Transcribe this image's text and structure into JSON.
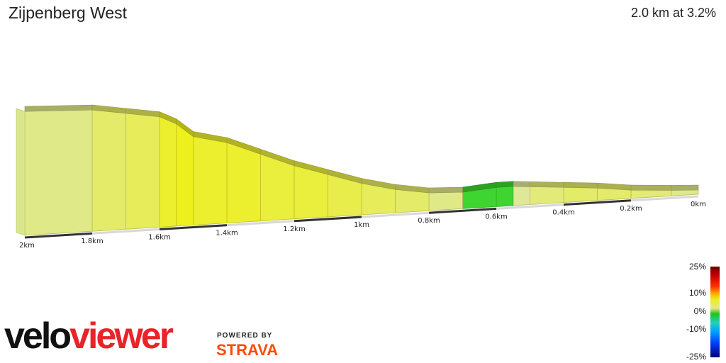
{
  "header": {
    "title": "Zijpenberg West",
    "summary": "2.0 km at 3.2%"
  },
  "chart_data": {
    "type": "area",
    "title": "Zijpenberg West",
    "subtitle": "2.0 km at 3.2%",
    "xlabel": "",
    "ylabel": "",
    "x_unit": "km",
    "x_axis_reversed": true,
    "x_ticks": [
      "2km",
      "1.8km",
      "1.6km",
      "1.4km",
      "1.2km",
      "1km",
      "0.8km",
      "0.6km",
      "0.4km",
      "0.2km",
      "0km"
    ],
    "xlim": [
      0,
      2
    ],
    "grid": false,
    "profile_distance_km": [
      0.0,
      0.08,
      0.2,
      0.3,
      0.4,
      0.5,
      0.55,
      0.6,
      0.7,
      0.8,
      0.9,
      1.0,
      1.1,
      1.2,
      1.3,
      1.4,
      1.5,
      1.55,
      1.6,
      1.7,
      1.8,
      2.0
    ],
    "profile_elevation_relative": [
      0,
      1,
      3,
      6,
      8,
      10,
      11,
      11,
      9,
      10,
      14,
      20,
      28,
      36,
      46,
      56,
      62,
      72,
      78,
      82,
      86,
      88
    ],
    "segment_grades_pct": [
      1,
      2,
      3,
      3,
      2,
      0,
      -1,
      -1,
      1,
      3,
      4,
      5,
      6,
      6,
      7,
      7,
      8,
      7,
      4,
      3,
      1
    ]
  },
  "legend": {
    "labels": [
      "25%",
      "10%",
      "0%",
      "-10%",
      "-25%"
    ]
  },
  "branding": {
    "velo": "velo",
    "viewer": "viewer",
    "powered_by": "POWERED BY",
    "strava": "STRAVA"
  },
  "colors": {
    "accent_red": "#e8242a",
    "strava_orange": "#fc4c02",
    "steep": "#f0f020",
    "flat": "#e4e88a",
    "descent": "#22d422"
  }
}
